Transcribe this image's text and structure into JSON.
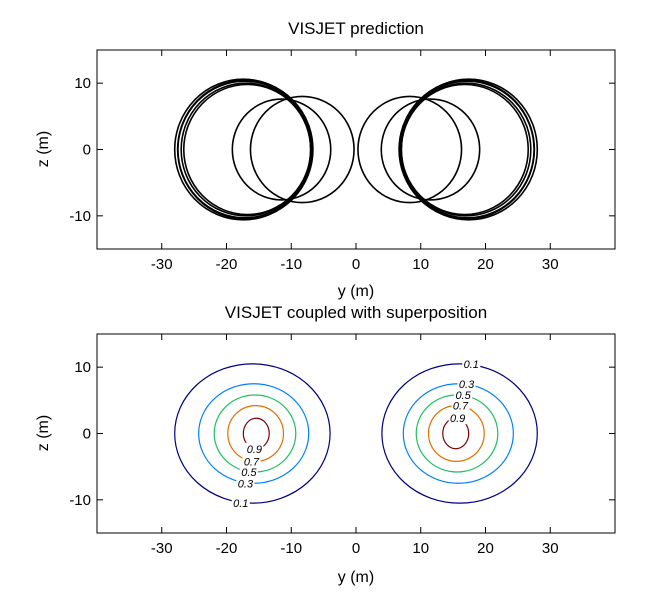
{
  "chart_data": [
    {
      "type": "line",
      "title": "VISJET prediction",
      "xlabel": "y (m)",
      "ylabel": "z (m)",
      "xlim": [
        -40,
        40
      ],
      "ylim": [
        -15,
        15
      ],
      "xticks": [
        -30,
        -20,
        -10,
        0,
        10,
        20,
        30
      ],
      "yticks": [
        -10,
        0,
        10
      ],
      "grid": false,
      "series": [
        {
          "center": [
            -17,
            0
          ],
          "radius": 10.0,
          "color": "#000000"
        },
        {
          "center": [
            -17.2,
            0
          ],
          "radius": 10.3,
          "color": "#000000"
        },
        {
          "center": [
            -17.4,
            0
          ],
          "radius": 10.6,
          "color": "#000000"
        },
        {
          "center": [
            -16.8,
            0
          ],
          "radius": 9.8,
          "color": "#000000"
        },
        {
          "center": [
            -17.1,
            0
          ],
          "radius": 10.45,
          "color": "#000000"
        },
        {
          "center": [
            -11.5,
            0
          ],
          "radius": 7.6,
          "color": "#000000"
        },
        {
          "center": [
            -8.3,
            0
          ],
          "radius": 8.0,
          "color": "#000000"
        },
        {
          "center": [
            17,
            0
          ],
          "radius": 10.0,
          "color": "#000000"
        },
        {
          "center": [
            17.2,
            0
          ],
          "radius": 10.3,
          "color": "#000000"
        },
        {
          "center": [
            17.4,
            0
          ],
          "radius": 10.6,
          "color": "#000000"
        },
        {
          "center": [
            16.8,
            0
          ],
          "radius": 9.8,
          "color": "#000000"
        },
        {
          "center": [
            17.1,
            0
          ],
          "radius": 10.45,
          "color": "#000000"
        },
        {
          "center": [
            11.5,
            0
          ],
          "radius": 7.6,
          "color": "#000000"
        },
        {
          "center": [
            8.3,
            0
          ],
          "radius": 8.0,
          "color": "#000000"
        }
      ]
    },
    {
      "type": "contour",
      "title": "VISJET coupled with superposition",
      "xlabel": "y (m)",
      "ylabel": "z (m)",
      "xlim": [
        -40,
        40
      ],
      "ylim": [
        -15,
        15
      ],
      "xticks": [
        -30,
        -20,
        -10,
        0,
        10,
        20,
        30
      ],
      "yticks": [
        -10,
        0,
        10
      ],
      "grid": false,
      "levels": [
        {
          "level": "0.1",
          "color": "#00007f",
          "shape": {
            "cx": 16.0,
            "cy": 0,
            "rx": 12.0,
            "ry": 10.5
          }
        },
        {
          "level": "0.3",
          "color": "#0080ff",
          "shape": {
            "cx": 15.8,
            "cy": 0,
            "rx": 8.5,
            "ry": 7.5
          }
        },
        {
          "level": "0.5",
          "color": "#20c060",
          "shape": {
            "cx": 15.6,
            "cy": 0,
            "rx": 6.3,
            "ry": 5.8
          }
        },
        {
          "level": "0.7",
          "color": "#e07000",
          "shape": {
            "cx": 15.5,
            "cy": 0,
            "rx": 4.3,
            "ry": 4.2
          }
        },
        {
          "level": "0.9",
          "color": "#800000",
          "shape": {
            "cx": 15.4,
            "cy": 0,
            "rx": 2.0,
            "ry": 2.3
          }
        }
      ],
      "mirrored": true
    }
  ]
}
